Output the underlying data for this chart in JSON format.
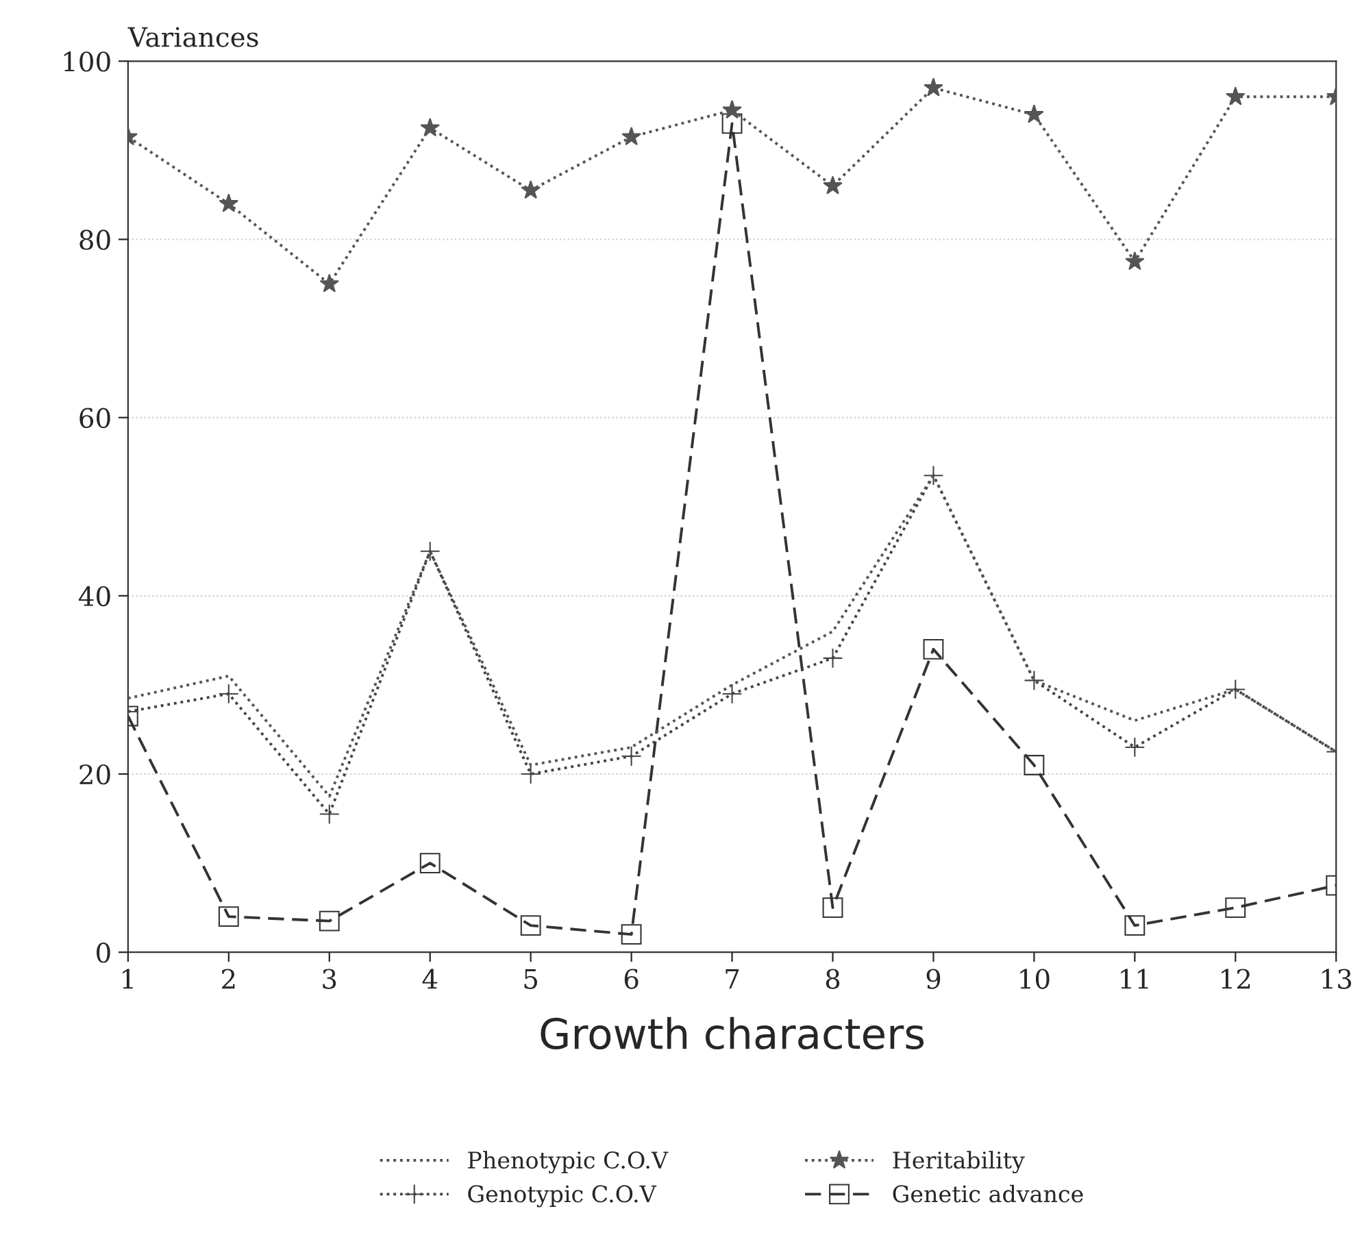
{
  "chart_data": {
    "type": "line",
    "xlabel": "Growth characters",
    "ylabel": "Variances",
    "x": [
      1,
      2,
      3,
      4,
      5,
      6,
      7,
      8,
      9,
      10,
      11,
      12,
      13
    ],
    "series": [
      {
        "name": "Phenotypic C.O.V",
        "color": "#555555",
        "marker": "none",
        "line_style": "dotted",
        "values": [
          28.5,
          31,
          17.5,
          45,
          21,
          23,
          30,
          36,
          53.5,
          30.5,
          26,
          29.5,
          22.5
        ]
      },
      {
        "name": "Genotypic C.O.V",
        "color": "#444444",
        "marker": "cross",
        "line_style": "dotted",
        "values": [
          27,
          29,
          15.5,
          45,
          20,
          22,
          29,
          33,
          53.5,
          30.5,
          23,
          29.5,
          22.5
        ]
      },
      {
        "name": "Heritability",
        "color": "#555555",
        "marker": "star",
        "line_style": "dotted",
        "values": [
          91.5,
          84,
          75,
          92.5,
          85.5,
          91.5,
          94.5,
          86,
          97,
          94,
          77.5,
          96,
          96
        ]
      },
      {
        "name": "Genetic advance",
        "color": "#333333",
        "marker": "square",
        "line_style": "dashed",
        "values": [
          26.5,
          4,
          3.5,
          10,
          3,
          2,
          93,
          5,
          34,
          21,
          3,
          5,
          7.5
        ]
      }
    ],
    "xlim": [
      1,
      13
    ],
    "xticks": [
      1,
      2,
      3,
      4,
      5,
      6,
      7,
      8,
      9,
      10,
      11,
      12,
      13
    ],
    "ylim": [
      0,
      100
    ],
    "yticks": [
      0,
      20,
      40,
      60,
      80,
      100
    ],
    "grid": "y",
    "legend": "bottom"
  }
}
